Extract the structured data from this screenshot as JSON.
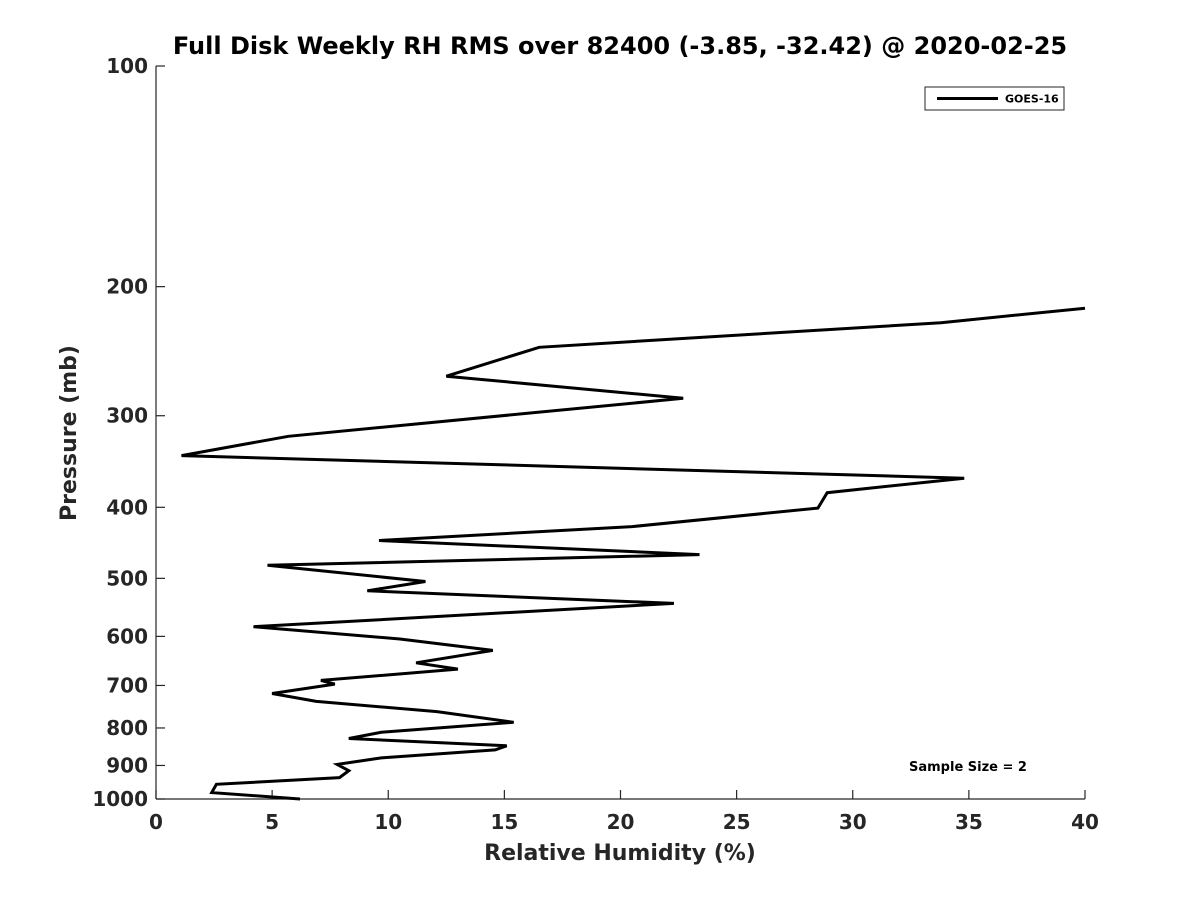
{
  "chart_data": {
    "type": "line",
    "title": "Full Disk Weekly RH RMS over 82400 (-3.85, -32.42) @ 2020-02-25",
    "xlabel": "Relative Humidity (%)",
    "ylabel": "Pressure (mb)",
    "xlim": [
      0,
      40
    ],
    "ylim": [
      100,
      1000
    ],
    "y_scale": "log",
    "y_reversed": true,
    "grid": false,
    "x_ticks": [
      0,
      5,
      10,
      15,
      20,
      25,
      30,
      35,
      40
    ],
    "y_ticks": [
      100,
      200,
      300,
      400,
      500,
      600,
      700,
      800,
      900,
      1000
    ],
    "legend": {
      "position": "top-right",
      "entries": [
        "GOES-16"
      ]
    },
    "annotation": "Sample Size = 2",
    "series": [
      {
        "name": "GOES-16",
        "color": "#000000",
        "points": [
          [
            6.2,
            1000
          ],
          [
            2.4,
            980
          ],
          [
            2.6,
            955
          ],
          [
            7.9,
            935
          ],
          [
            8.3,
            915
          ],
          [
            7.8,
            897
          ],
          [
            9.7,
            879
          ],
          [
            14.6,
            857
          ],
          [
            15.1,
            846
          ],
          [
            8.3,
            827
          ],
          [
            9.7,
            811
          ],
          [
            15.4,
            786
          ],
          [
            12.1,
            760
          ],
          [
            6.9,
            736
          ],
          [
            5.0,
            718
          ],
          [
            7.7,
            697
          ],
          [
            7.1,
            689
          ],
          [
            13.0,
            665
          ],
          [
            11.2,
            652
          ],
          [
            14.5,
            627
          ],
          [
            10.5,
            605
          ],
          [
            4.2,
            582
          ],
          [
            22.3,
            541
          ],
          [
            9.1,
            520
          ],
          [
            11.6,
            505
          ],
          [
            4.8,
            480
          ],
          [
            23.4,
            464
          ],
          [
            9.6,
            444
          ],
          [
            20.5,
            425
          ],
          [
            28.5,
            401
          ],
          [
            28.9,
            382
          ],
          [
            34.8,
            365
          ],
          [
            1.1,
            340
          ],
          [
            5.7,
            320
          ],
          [
            22.7,
            284
          ],
          [
            12.5,
            265
          ],
          [
            16.5,
            242
          ],
          [
            33.8,
            224
          ],
          [
            40.0,
            214
          ]
        ]
      }
    ]
  }
}
